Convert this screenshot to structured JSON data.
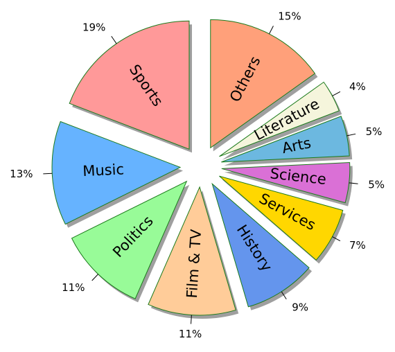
{
  "chart_data": {
    "type": "pie",
    "categories": [
      "Others",
      "Literature",
      "Arts",
      "Science",
      "Services",
      "History",
      "Film & TV",
      "Politics",
      "Music",
      "Sports"
    ],
    "values": [
      15,
      4,
      5,
      5,
      7,
      9,
      11,
      11,
      13,
      19
    ],
    "value_labels": [
      "15%",
      "4%",
      "5%",
      "5%",
      "7%",
      "9%",
      "11%",
      "11%",
      "13%",
      "19%"
    ],
    "colors": [
      "#ffa07a",
      "#f5f5dc",
      "#6cb8e0",
      "#da70d6",
      "#ffd700",
      "#6495ed",
      "#ffcc99",
      "#98fb98",
      "#66b3ff",
      "#ff9999"
    ],
    "start_angle": 90,
    "counterclock": false,
    "shadow": true
  }
}
